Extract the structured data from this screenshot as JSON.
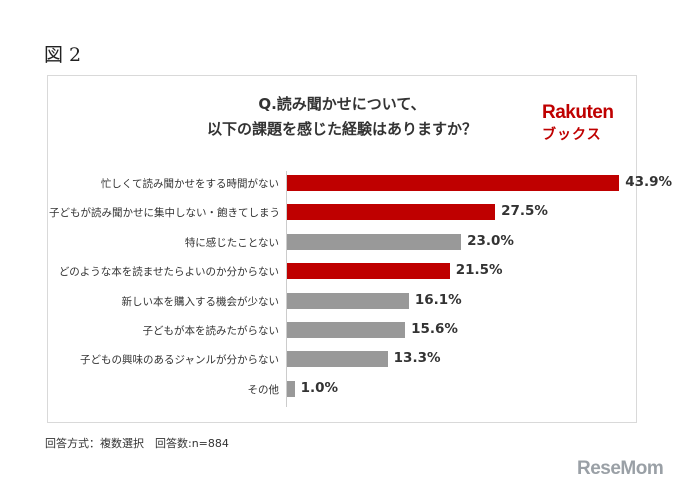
{
  "figure_label": "図 2",
  "footnote": "回答方式：複数選択　回答数:n=884",
  "logo": {
    "brand": "Rakuten",
    "sub": "ブックス"
  },
  "watermark": "ReseMom",
  "colors": {
    "highlight": "#bf0000",
    "neutral": "#999999",
    "text": "#333333"
  },
  "chart_data": {
    "type": "bar",
    "orientation": "horizontal",
    "title": [
      "Q.読み聞かせについて、",
      "以下の課題を感じた経験はありますか？"
    ],
    "xlim": [
      0,
      50
    ],
    "grid": false,
    "unit": "%",
    "categories": [
      "忙しくて読み聞かせをする時間がない",
      "子どもが読み聞かせに集中しない・飽きてしまう",
      "特に感じたことない",
      "どのような本を読ませたらよいのか分からない",
      "新しい本を購入する機会が少ない",
      "子どもが本を読みたがらない",
      "子どもの興味のあるジャンルが分からない",
      "その他"
    ],
    "values": [
      43.9,
      27.5,
      23.0,
      21.5,
      16.1,
      15.6,
      13.3,
      1.0
    ],
    "value_labels": [
      "43.9%",
      "27.5%",
      "23.0%",
      "21.5%",
      "16.1%",
      "15.6%",
      "13.3%",
      "1.0%"
    ],
    "highlighted": [
      true,
      true,
      false,
      true,
      false,
      false,
      false,
      false
    ]
  }
}
